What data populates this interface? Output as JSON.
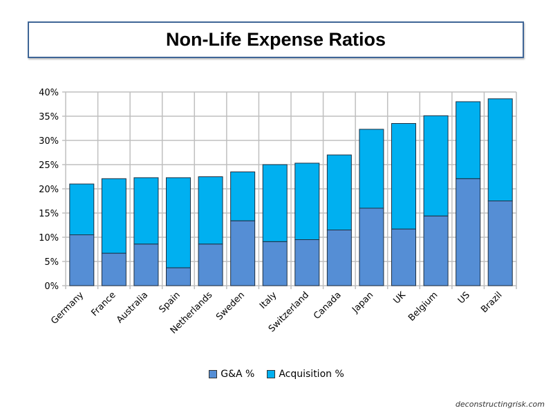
{
  "colors": {
    "ga": "#558ed5",
    "acquisition": "#00b0f0",
    "title_border": "#3e6596",
    "grid": "#bfbfbf"
  },
  "credit": "deconstructingrisk.com",
  "chart_data": {
    "type": "bar",
    "stacked": true,
    "title": "Non-Life Expense Ratios",
    "xlabel": "",
    "ylabel": "",
    "ylim": [
      0,
      40
    ],
    "yticks": [
      "0%",
      "5%",
      "10%",
      "15%",
      "20%",
      "25%",
      "30%",
      "35%",
      "40%"
    ],
    "grid": true,
    "legend_position": "bottom",
    "categories": [
      "Germany",
      "France",
      "Australia",
      "Spain",
      "Netherlands",
      "Sweden",
      "Italy",
      "Switzerland",
      "Canada",
      "Japan",
      "UK",
      "Belgium",
      "US",
      "Brazil"
    ],
    "series": [
      {
        "name": "G&A %",
        "values": [
          10.5,
          6.7,
          8.6,
          3.7,
          8.6,
          13.4,
          9.1,
          9.5,
          11.5,
          16.0,
          11.7,
          14.4,
          22.1,
          17.5
        ]
      },
      {
        "name": "Acquisition %",
        "values": [
          10.5,
          15.4,
          13.7,
          18.6,
          13.9,
          10.1,
          15.9,
          15.8,
          15.5,
          16.3,
          21.8,
          20.7,
          15.9,
          21.1
        ]
      }
    ]
  }
}
